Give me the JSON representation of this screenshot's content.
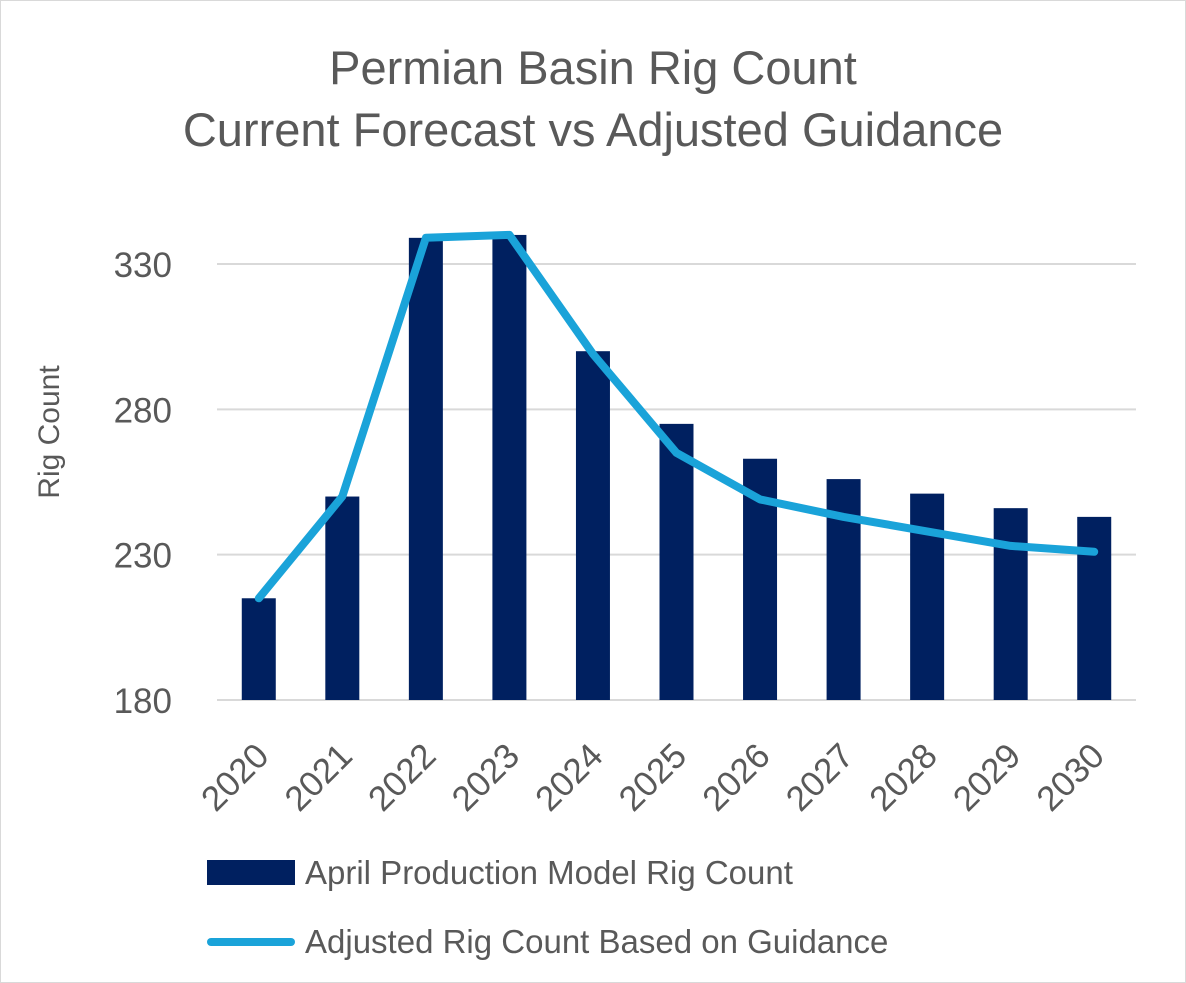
{
  "chart_data": {
    "type": "bar",
    "title": "Permian Basin Rig Count",
    "subtitle": "Current Forecast vs Adjusted Guidance",
    "ylabel": "Rig Count",
    "xlabel": "",
    "ylim": [
      180,
      345
    ],
    "yticks": [
      180,
      230,
      280,
      330
    ],
    "grid": true,
    "legend_position": "bottom",
    "categories": [
      "2020",
      "2021",
      "2022",
      "2023",
      "2024",
      "2025",
      "2026",
      "2027",
      "2028",
      "2029",
      "2030"
    ],
    "series": [
      {
        "name": "April Production Model Rig Count",
        "type": "bar",
        "color": "#002060",
        "values": [
          215,
          250,
          339,
          340,
          300,
          275,
          263,
          256,
          251,
          246,
          243
        ]
      },
      {
        "name": "Adjusted Rig Count Based on Guidance",
        "type": "line",
        "color": "#1aa3d9",
        "values": [
          215,
          250,
          339,
          340,
          299,
          265,
          249,
          243,
          238,
          233,
          231
        ]
      }
    ]
  }
}
